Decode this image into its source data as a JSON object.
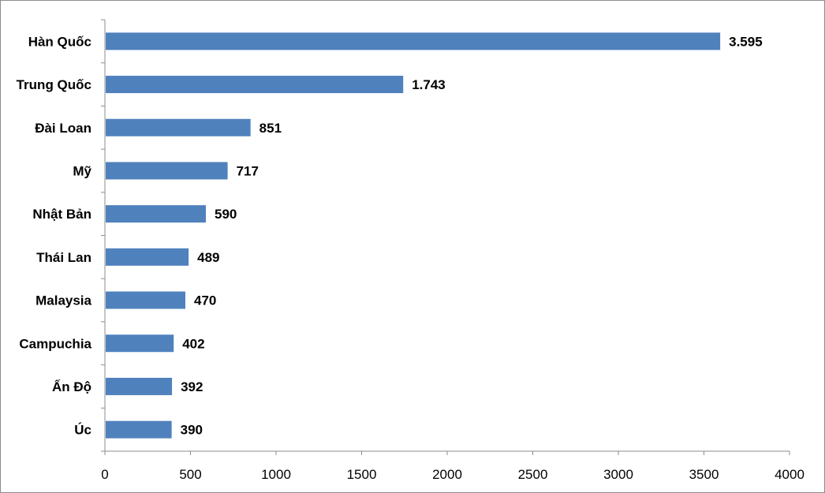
{
  "chart_data": {
    "type": "bar",
    "orientation": "horizontal",
    "categories": [
      "Hàn Quốc",
      "Trung Quốc",
      "Đài Loan",
      "Mỹ",
      "Nhật Bản",
      "Thái Lan",
      "Malaysia",
      "Campuchia",
      "Ấn Độ",
      "Úc"
    ],
    "values": [
      3595,
      1743,
      851,
      717,
      590,
      489,
      470,
      402,
      392,
      390
    ],
    "value_labels": [
      "3.595",
      "1.743",
      "851",
      "717",
      "590",
      "489",
      "470",
      "402",
      "392",
      "390"
    ],
    "xlim": [
      0,
      4000
    ],
    "xticks": [
      "0",
      "500",
      "1000",
      "1500",
      "2000",
      "2500",
      "3000",
      "3500",
      "4000"
    ],
    "xtick_values": [
      0,
      500,
      1000,
      1500,
      2000,
      2500,
      3000,
      3500,
      4000
    ],
    "title": "",
    "xlabel": "",
    "ylabel": "",
    "grid": false,
    "legend": "none",
    "bar_color": "#4f81bd",
    "axis_color": "#8c8c8c"
  }
}
